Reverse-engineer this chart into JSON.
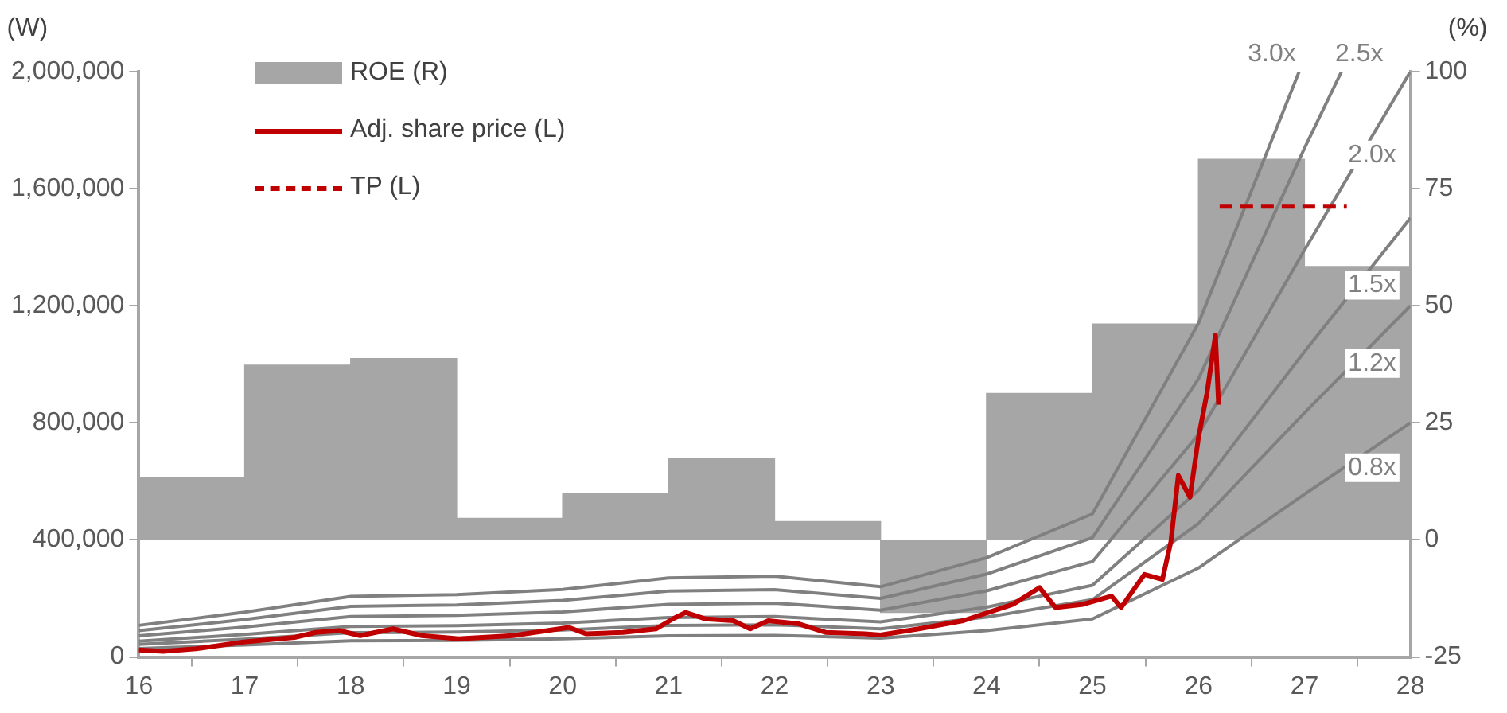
{
  "chart_data": {
    "type": "line",
    "ylabel": "(W)",
    "y2label": "(%)",
    "legend": "top left",
    "grid": false,
    "marker": "none",
    "xlim": [
      16,
      28
    ],
    "xticks": [
      16,
      17,
      18,
      19,
      20,
      21,
      22,
      23,
      24,
      25,
      26,
      27,
      28
    ],
    "ylim": [
      0,
      2000000
    ],
    "yticks": [
      0,
      {
        "value": 400000,
        "label": "400,000"
      },
      {
        "value": 800000,
        "label": "800,000"
      },
      {
        "value": 1200000,
        "label": "1,200,000"
      },
      {
        "value": 1600000,
        "label": "1,600,000"
      },
      {
        "value": 2000000,
        "label": "2,000,000"
      }
    ],
    "y2lim": [
      -25,
      100
    ],
    "y2ticks": [
      -25,
      0,
      25,
      50,
      75,
      100
    ],
    "series": [
      {
        "name": "ROE (R)",
        "type": "bar",
        "axis": "y2",
        "color": "#a6a6a6",
        "x": [
          16.5,
          17.5,
          18.5,
          19.5,
          20.5,
          21.5,
          22.5,
          23.5,
          24.5,
          25.5,
          26.5,
          27.5
        ],
        "values": [
          13.4,
          37.3,
          38.7,
          4.6,
          9.9,
          17.3,
          3.9,
          -15.5,
          31.3,
          46.1,
          81.3,
          58.4
        ]
      },
      {
        "name": "0.8x",
        "color": "#808080",
        "x": [
          16,
          17,
          18,
          19,
          20,
          21,
          22,
          23,
          24,
          25,
          26,
          27,
          28
        ],
        "values": [
          29000,
          41000,
          55000,
          57000,
          62000,
          72000,
          74000,
          64000,
          90000,
          130000,
          304000,
          556000,
          800000
        ]
      },
      {
        "name": "1.2x",
        "color": "#808080",
        "x": [
          16,
          17,
          18,
          19,
          20,
          21,
          22,
          23,
          24,
          25,
          26,
          27,
          28
        ],
        "values": [
          43000,
          61000,
          83000,
          85000,
          92000,
          108000,
          110000,
          96000,
          136000,
          196000,
          456000,
          834000,
          1200000
        ]
      },
      {
        "name": "1.5x",
        "color": "#808080",
        "x": [
          16,
          17,
          18,
          19,
          20,
          21,
          22,
          23,
          24,
          25,
          26,
          27,
          28
        ],
        "values": [
          54000,
          77000,
          104000,
          107000,
          116000,
          135000,
          138000,
          120000,
          170000,
          245000,
          570000,
          1043000,
          1500000
        ]
      },
      {
        "name": "2.0x",
        "color": "#808080",
        "x": [
          16,
          17,
          18,
          19,
          20,
          21,
          22,
          23,
          24,
          25,
          26,
          27,
          28
        ],
        "values": [
          72000,
          102000,
          138000,
          142000,
          154000,
          180000,
          184000,
          160000,
          226000,
          326000,
          760000,
          1390000,
          2000000
        ]
      },
      {
        "name": "2.5x",
        "color": "#808080",
        "x": [
          16,
          17,
          18,
          19,
          20,
          21,
          22,
          23,
          24,
          25,
          26,
          27,
          27.35
        ],
        "values": [
          90000,
          128000,
          173000,
          178000,
          193000,
          225000,
          230000,
          200000,
          283000,
          408000,
          950000,
          1738000,
          2000000
        ]
      },
      {
        "name": "3.0x",
        "color": "#808080",
        "x": [
          16,
          17,
          18,
          19,
          20,
          21,
          22,
          23,
          24,
          25,
          26,
          26.95
        ],
        "values": [
          108000,
          153000,
          207000,
          213000,
          231000,
          270000,
          276000,
          240000,
          339000,
          489000,
          1140000,
          2000000
        ]
      },
      {
        "name": "Adj. share price (L)",
        "color": "#c00000",
        "x": [
          16,
          16.23,
          16.54,
          16.99,
          17.47,
          17.67,
          17.89,
          18.09,
          18.4,
          18.67,
          19.02,
          19.53,
          20.06,
          20.22,
          20.57,
          20.88,
          21.04,
          21.16,
          21.35,
          21.61,
          21.77,
          21.94,
          22.23,
          22.48,
          22.85,
          23,
          23.36,
          23.78,
          24.25,
          24.5,
          24.65,
          24.91,
          25.18,
          25.27,
          25.49,
          25.66,
          25.74,
          25.81,
          25.92,
          26,
          26.08,
          26.16,
          26.19
        ],
        "values": [
          24000,
          19000,
          28000,
          51000,
          67000,
          84000,
          90000,
          73000,
          96000,
          73000,
          62000,
          73000,
          101000,
          79000,
          84000,
          96000,
          130000,
          152000,
          130000,
          124000,
          96000,
          124000,
          113000,
          84000,
          79000,
          75000,
          96000,
          124000,
          180000,
          237000,
          169000,
          180000,
          208000,
          169000,
          282000,
          265000,
          394000,
          620000,
          546000,
          749000,
          901000,
          1099000,
          862000
        ]
      },
      {
        "name": "TP (L)",
        "line_style": "dashed",
        "color": "#c00000",
        "x": [
          26.2,
          27.4
        ],
        "values": [
          1540000,
          1540000
        ]
      }
    ]
  }
}
